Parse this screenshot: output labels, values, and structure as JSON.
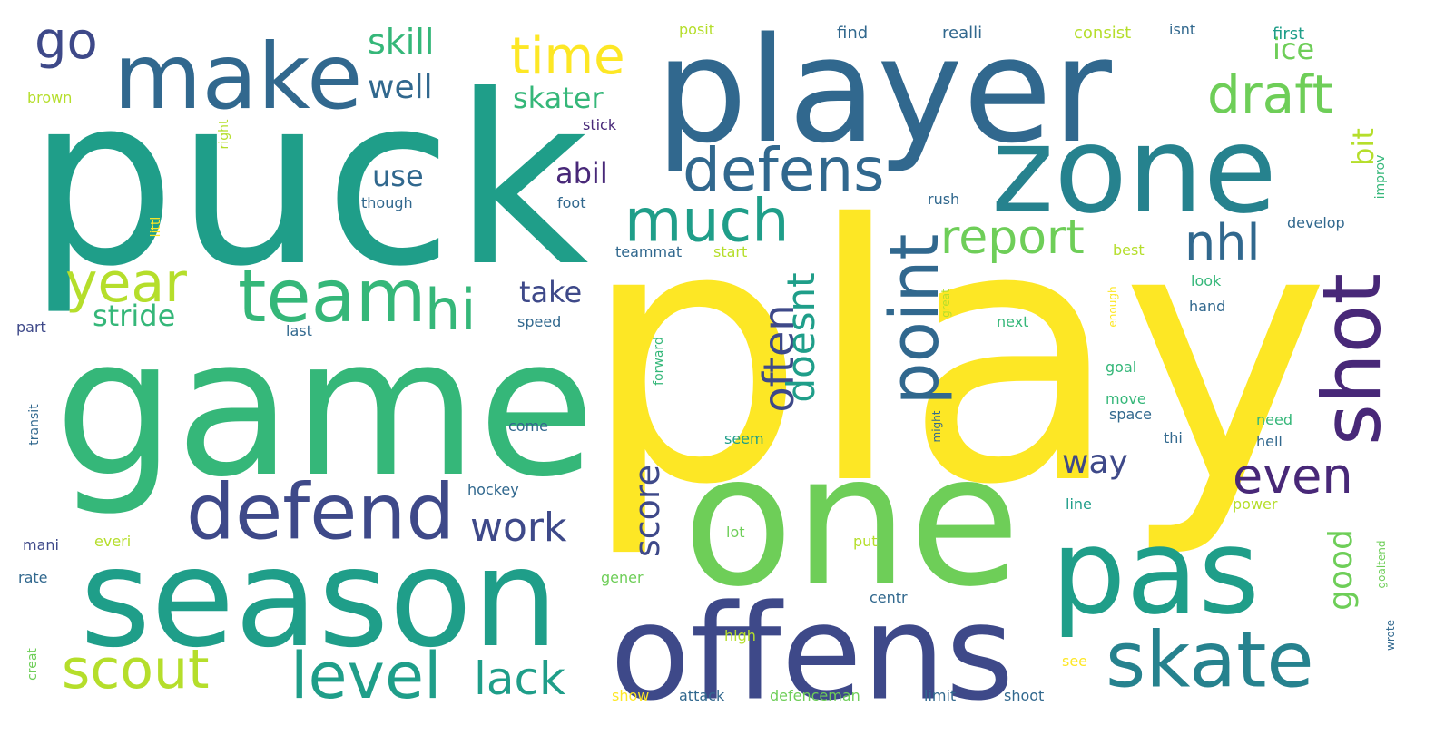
{
  "colors": {
    "yellow": "#fde725",
    "lime": "#b5de2b",
    "lightgreen": "#6ece58",
    "green": "#35b779",
    "teal": "#1f9e89",
    "blue": "#26828e",
    "steel": "#31688e",
    "indigo": "#3e4989",
    "purple": "#482878",
    "dark": "#440154"
  },
  "words": [
    {
      "text": "play"
    },
    {
      "text": "puck"
    },
    {
      "text": "game"
    },
    {
      "text": "player"
    },
    {
      "text": "one"
    },
    {
      "text": "season"
    },
    {
      "text": "offens"
    },
    {
      "text": "zone"
    },
    {
      "text": "pas"
    },
    {
      "text": "make"
    },
    {
      "text": "team"
    },
    {
      "text": "defend"
    },
    {
      "text": "skate"
    },
    {
      "text": "defens"
    },
    {
      "text": "shot"
    },
    {
      "text": "much"
    },
    {
      "text": "level"
    },
    {
      "text": "scout"
    },
    {
      "text": "lack"
    },
    {
      "text": "year"
    },
    {
      "text": "hi"
    },
    {
      "text": "draft"
    },
    {
      "text": "time"
    },
    {
      "text": "point"
    },
    {
      "text": "go"
    },
    {
      "text": "report"
    },
    {
      "text": "nhl"
    },
    {
      "text": "even"
    },
    {
      "text": "often"
    },
    {
      "text": "doesnt"
    },
    {
      "text": "work"
    },
    {
      "text": "skill"
    },
    {
      "text": "well"
    },
    {
      "text": "skater"
    },
    {
      "text": "use"
    },
    {
      "text": "abil"
    },
    {
      "text": "stride"
    },
    {
      "text": "take"
    },
    {
      "text": "ice"
    },
    {
      "text": "bit"
    },
    {
      "text": "score"
    },
    {
      "text": "way"
    },
    {
      "text": "good"
    },
    {
      "text": "posit"
    },
    {
      "text": "find"
    },
    {
      "text": "realli"
    },
    {
      "text": "consist"
    },
    {
      "text": "isnt"
    },
    {
      "text": "first"
    },
    {
      "text": "brown"
    },
    {
      "text": "stick"
    },
    {
      "text": "right"
    },
    {
      "text": "though"
    },
    {
      "text": "foot"
    },
    {
      "text": "rush"
    },
    {
      "text": "develop"
    },
    {
      "text": "improv"
    },
    {
      "text": "littl"
    },
    {
      "text": "teammat"
    },
    {
      "text": "start"
    },
    {
      "text": "best"
    },
    {
      "text": "look"
    },
    {
      "text": "hand"
    },
    {
      "text": "part"
    },
    {
      "text": "last"
    },
    {
      "text": "speed"
    },
    {
      "text": "next"
    },
    {
      "text": "forward"
    },
    {
      "text": "great"
    },
    {
      "text": "enough"
    },
    {
      "text": "transit"
    },
    {
      "text": "goal"
    },
    {
      "text": "move"
    },
    {
      "text": "space"
    },
    {
      "text": "thi"
    },
    {
      "text": "need"
    },
    {
      "text": "hell"
    },
    {
      "text": "come"
    },
    {
      "text": "seem"
    },
    {
      "text": "might"
    },
    {
      "text": "hockey"
    },
    {
      "text": "line"
    },
    {
      "text": "power"
    },
    {
      "text": "mani"
    },
    {
      "text": "everi"
    },
    {
      "text": "lot"
    },
    {
      "text": "put"
    },
    {
      "text": "goaltend"
    },
    {
      "text": "rate"
    },
    {
      "text": "gener"
    },
    {
      "text": "centr"
    },
    {
      "text": "high"
    },
    {
      "text": "see"
    },
    {
      "text": "wrote"
    },
    {
      "text": "creat"
    },
    {
      "text": "show"
    },
    {
      "text": "attack"
    },
    {
      "text": "defenceman"
    },
    {
      "text": "limit"
    },
    {
      "text": "shoot"
    }
  ]
}
